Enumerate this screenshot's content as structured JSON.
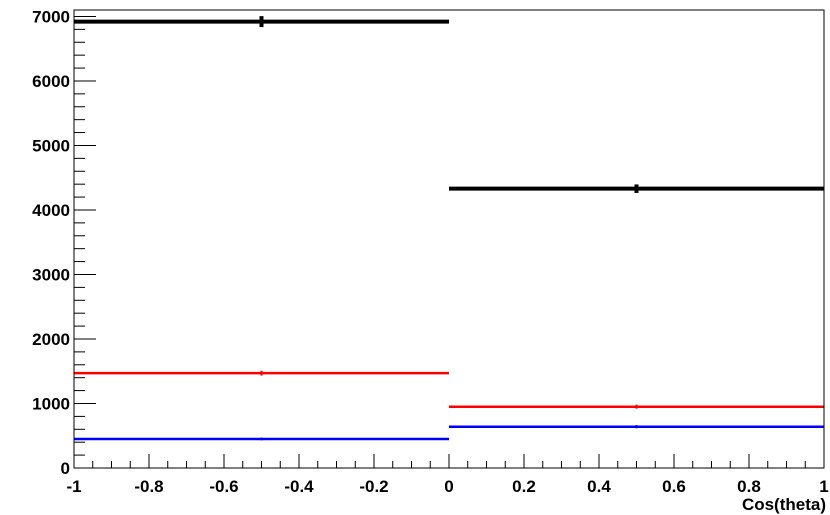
{
  "chart_data": {
    "type": "histogram",
    "title": "",
    "xlabel": "Cos(theta)",
    "ylabel": "",
    "xlim": [
      -1,
      1
    ],
    "ylim": [
      0,
      7100
    ],
    "grid": false,
    "legend": "none",
    "x_ticks": [
      -1,
      -0.8,
      -0.6,
      -0.4,
      -0.2,
      0,
      0.2,
      0.4,
      0.6,
      0.8,
      1
    ],
    "x_tick_labels": [
      "-1",
      "-0.8",
      "-0.6",
      "-0.4",
      "-0.2",
      "0",
      "0.2",
      "0.4",
      "0.6",
      "0.8",
      "1"
    ],
    "y_ticks": [
      0,
      1000,
      2000,
      3000,
      4000,
      5000,
      6000,
      7000
    ],
    "y_tick_labels": [
      "0",
      "1000",
      "2000",
      "3000",
      "4000",
      "5000",
      "6000",
      "7000"
    ],
    "bin_edges": [
      -1,
      0,
      1
    ],
    "series": [
      {
        "color": "#000000",
        "values": [
          6920,
          4330
        ],
        "errors": [
          85,
          66
        ]
      },
      {
        "color": "#ff0000",
        "values": [
          1470,
          950
        ],
        "errors": [
          38,
          31
        ]
      },
      {
        "color": "#0000ff",
        "values": [
          450,
          640
        ],
        "errors": [
          21,
          25
        ]
      }
    ]
  }
}
